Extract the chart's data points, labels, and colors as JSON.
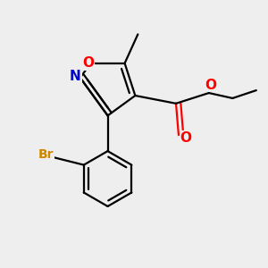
{
  "bg_color": "#eeeeee",
  "line_color": "#000000",
  "bond_width": 1.6,
  "atom_colors": {
    "O": "#ff0000",
    "N": "#0000cc",
    "Br": "#cc8800"
  },
  "font_size": 10
}
